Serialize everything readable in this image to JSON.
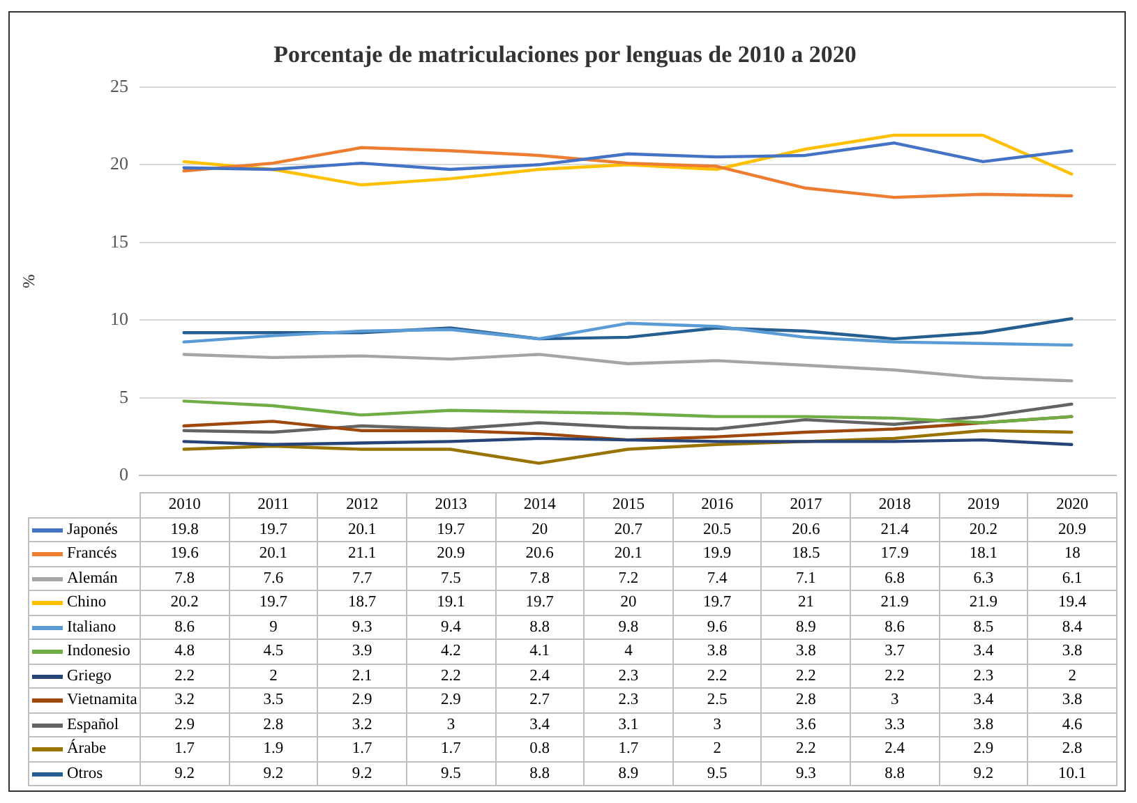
{
  "chart_data": {
    "type": "line",
    "title": "Porcentaje de matriculaciones por lenguas de 2010 a 2020",
    "ylabel": "%",
    "categories": [
      "2010",
      "2011",
      "2012",
      "2013",
      "2014",
      "2015",
      "2016",
      "2017",
      "2018",
      "2019",
      "2020"
    ],
    "ylim": [
      0,
      25
    ],
    "yticks": [
      0,
      5,
      10,
      15,
      20,
      25
    ],
    "grid": "y",
    "data_labels": true,
    "legend": "bottom",
    "marker": "none",
    "line_style": "solid",
    "series": [
      {
        "name": "Japonés",
        "color": "#4472c4",
        "values": [
          19.8,
          19.7,
          20.1,
          19.7,
          20,
          20.7,
          20.5,
          20.6,
          21.4,
          20.2,
          20.9
        ]
      },
      {
        "name": "Francés",
        "color": "#ed7d31",
        "values": [
          19.6,
          20.1,
          21.1,
          20.9,
          20.6,
          20.1,
          19.9,
          18.5,
          17.9,
          18.1,
          18
        ]
      },
      {
        "name": "Alemán",
        "color": "#a5a5a5",
        "values": [
          7.8,
          7.6,
          7.7,
          7.5,
          7.8,
          7.2,
          7.4,
          7.1,
          6.8,
          6.3,
          6.1
        ]
      },
      {
        "name": "Chino",
        "color": "#ffc000",
        "values": [
          20.2,
          19.7,
          18.7,
          19.1,
          19.7,
          20,
          19.7,
          21,
          21.9,
          21.9,
          19.4
        ]
      },
      {
        "name": "Italiano",
        "color": "#5b9bd5",
        "values": [
          8.6,
          9,
          9.3,
          9.4,
          8.8,
          9.8,
          9.6,
          8.9,
          8.6,
          8.5,
          8.4
        ]
      },
      {
        "name": "Indonesio",
        "color": "#70ad47",
        "values": [
          4.8,
          4.5,
          3.9,
          4.2,
          4.1,
          4,
          3.8,
          3.8,
          3.7,
          3.4,
          3.8
        ]
      },
      {
        "name": "Griego",
        "color": "#264478",
        "values": [
          2.2,
          2,
          2.1,
          2.2,
          2.4,
          2.3,
          2.2,
          2.2,
          2.2,
          2.3,
          2
        ]
      },
      {
        "name": "Vietnamita",
        "color": "#9e480e",
        "values": [
          3.2,
          3.5,
          2.9,
          2.9,
          2.7,
          2.3,
          2.5,
          2.8,
          3,
          3.4,
          3.8
        ]
      },
      {
        "name": "Español",
        "color": "#636363",
        "values": [
          2.9,
          2.8,
          3.2,
          3,
          3.4,
          3.1,
          3,
          3.6,
          3.3,
          3.8,
          4.6
        ]
      },
      {
        "name": "Árabe",
        "color": "#997300",
        "values": [
          1.7,
          1.9,
          1.7,
          1.7,
          0.8,
          1.7,
          2,
          2.2,
          2.4,
          2.9,
          2.8
        ]
      },
      {
        "name": "Otros",
        "color": "#255e91",
        "values": [
          9.2,
          9.2,
          9.2,
          9.5,
          8.8,
          8.9,
          9.5,
          9.3,
          8.8,
          9.2,
          10.1
        ]
      }
    ]
  }
}
